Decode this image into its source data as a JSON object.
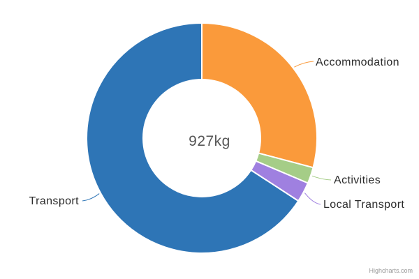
{
  "chart_data": {
    "type": "pie",
    "subtype": "donut",
    "title": "",
    "center_label": "927kg",
    "total": 927,
    "unit": "kg",
    "start_angle_deg": 0,
    "direction": "clockwise",
    "inner_radius_ratio": 0.51,
    "grid": false,
    "legend_position": "connected-data-labels",
    "series": [
      {
        "name": "Accommodation",
        "value": 270,
        "color": "#fa9a3b"
      },
      {
        "name": "Activities",
        "value": 21,
        "color": "#a5cd87"
      },
      {
        "name": "Local Transport",
        "value": 26,
        "color": "#9f80e0"
      },
      {
        "name": "Transport",
        "value": 610,
        "color": "#2e75b6"
      }
    ],
    "slice_border_color": "#ffffff"
  },
  "credit": {
    "text": "Highcharts.com"
  }
}
